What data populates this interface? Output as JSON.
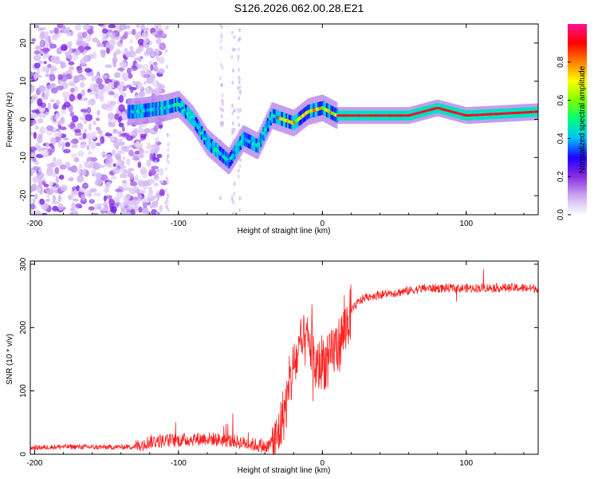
{
  "title": "S126.2026.062.00.28.E21",
  "chart_data": [
    {
      "type": "heatmap",
      "name": "spectrogram",
      "xlabel": "Height of straight line (km)",
      "ylabel": "Frequency (Hz)",
      "xlim": [
        -203,
        150
      ],
      "ylim": [
        -25,
        25
      ],
      "xticks": [
        -200,
        -100,
        0,
        100
      ],
      "yticks": [
        -20,
        -10,
        0,
        10,
        20
      ],
      "colorbar": {
        "label": "Normalized spectral amplitude",
        "range": [
          0,
          1
        ],
        "ticks": [
          "0.0",
          "0.2",
          "0.4",
          "0.6",
          "0.8"
        ],
        "colors": [
          "#ffffff",
          "#c9a8f0",
          "#8a2be2",
          "#2000ff",
          "#00c0ff",
          "#00ff80",
          "#7fff00",
          "#ffff00",
          "#ff8000",
          "#ff0000",
          "#ff1493"
        ]
      },
      "features": {
        "noise_band_x": [
          -203,
          -130
        ],
        "track": [
          {
            "x": -130,
            "y": 2
          },
          {
            "x": -110,
            "y": 3
          },
          {
            "x": -100,
            "y": 4
          },
          {
            "x": -90,
            "y": 0
          },
          {
            "x": -80,
            "y": -6
          },
          {
            "x": -65,
            "y": -11
          },
          {
            "x": -55,
            "y": -5
          },
          {
            "x": -45,
            "y": -7
          },
          {
            "x": -35,
            "y": 1
          },
          {
            "x": -20,
            "y": -1
          },
          {
            "x": -10,
            "y": 2
          },
          {
            "x": 0,
            "y": 3
          },
          {
            "x": 10,
            "y": 1
          },
          {
            "x": 60,
            "y": 1
          },
          {
            "x": 80,
            "y": 3
          },
          {
            "x": 100,
            "y": 1
          },
          {
            "x": 150,
            "y": 2
          }
        ]
      }
    },
    {
      "type": "line",
      "name": "snr",
      "xlabel": "Height of straight line (km)",
      "ylabel": "SNR (10 * v/v)",
      "xlim": [
        -203,
        150
      ],
      "ylim": [
        0,
        305
      ],
      "xticks": [
        -200,
        -100,
        0,
        100
      ],
      "yticks": [
        0,
        100,
        200,
        300
      ],
      "color": "#ff0000",
      "series": [
        {
          "name": "SNR",
          "x": [
            -203,
            -180,
            -150,
            -130,
            -120,
            -100,
            -80,
            -60,
            -40,
            -32,
            -28,
            -24,
            -20,
            -16,
            -12,
            -8,
            -4,
            0,
            4,
            8,
            12,
            16,
            20,
            25,
            30,
            40,
            50,
            60,
            70,
            80,
            100,
            120,
            150
          ],
          "y": [
            10,
            12,
            11,
            12,
            20,
            22,
            25,
            20,
            12,
            20,
            55,
            90,
            140,
            160,
            180,
            170,
            130,
            150,
            140,
            165,
            175,
            200,
            225,
            240,
            248,
            252,
            255,
            258,
            262,
            262,
            262,
            263,
            262
          ]
        }
      ]
    }
  ]
}
